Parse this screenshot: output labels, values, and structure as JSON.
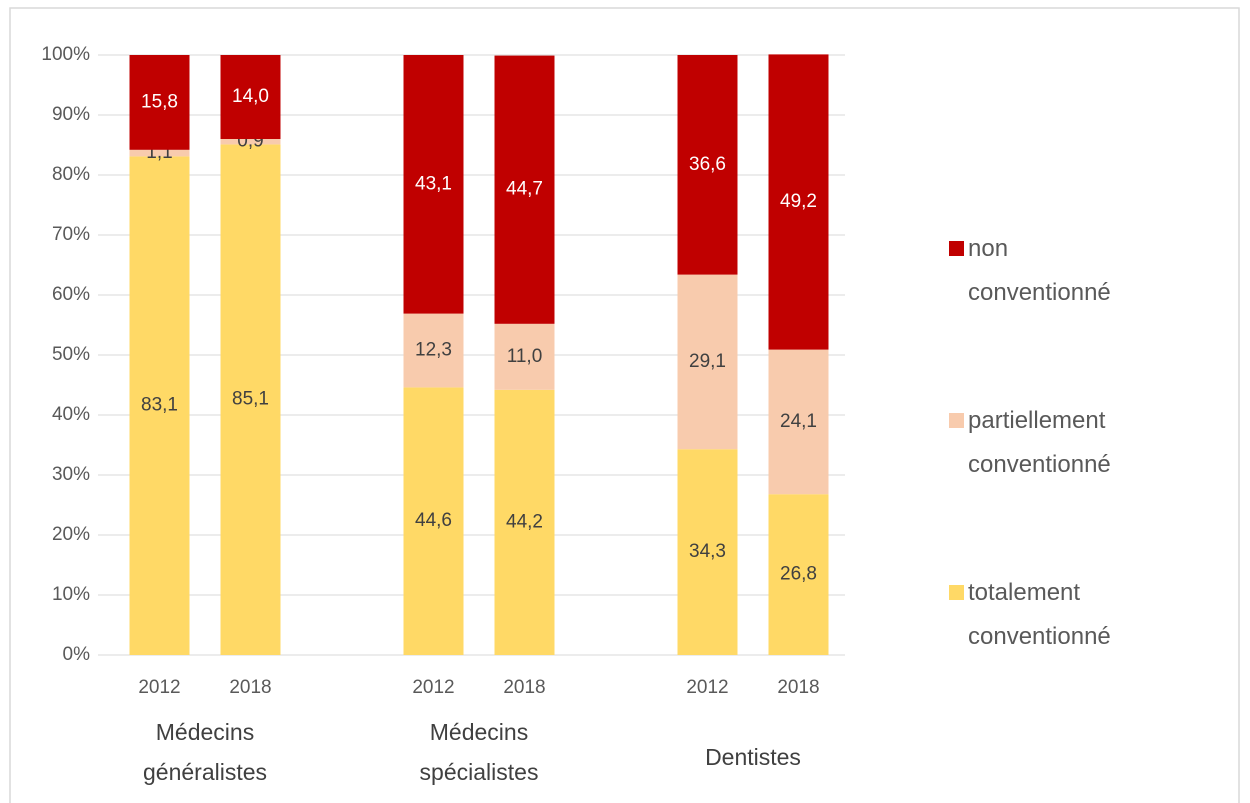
{
  "chart_data": {
    "type": "stacked_bar",
    "categories": [
      "2012",
      "2018",
      "2012",
      "2018",
      "2012",
      "2018"
    ],
    "groups": [
      "Médecins généralistes",
      "Médecins spécialistes",
      "Dentistes"
    ],
    "series": [
      {
        "name": "totalement conventionné",
        "color": "#FFD966",
        "values": [
          83.1,
          85.1,
          44.6,
          44.2,
          34.3,
          26.8
        ],
        "value_labels": [
          "83,1",
          "85,1",
          "44,6",
          "44,2",
          "34,3",
          "26,8"
        ]
      },
      {
        "name": "partiellement conventionné",
        "color": "#F8CBAD",
        "values": [
          1.1,
          0.9,
          12.3,
          11.0,
          29.1,
          24.1
        ],
        "value_labels": [
          "1,1",
          "0,9",
          "12,3",
          "11,0",
          "29,1",
          "24,1"
        ]
      },
      {
        "name": "non conventionné",
        "color": "#C00000",
        "values": [
          15.8,
          14.0,
          43.1,
          44.7,
          36.6,
          49.2
        ],
        "value_labels": [
          "15,8",
          "14,0",
          "43,1",
          "44,7",
          "36,6",
          "49,2"
        ]
      }
    ],
    "ylim": [
      0,
      100
    ],
    "yticks": [
      {
        "value": 0,
        "label": "0%"
      },
      {
        "value": 10,
        "label": "10%"
      },
      {
        "value": 20,
        "label": "20%"
      },
      {
        "value": 30,
        "label": "30%"
      },
      {
        "value": 40,
        "label": "40%"
      },
      {
        "value": 50,
        "label": "50%"
      },
      {
        "value": 60,
        "label": "60%"
      },
      {
        "value": 70,
        "label": "70%"
      },
      {
        "value": 80,
        "label": "80%"
      },
      {
        "value": 90,
        "label": "90%"
      },
      {
        "value": 100,
        "label": "100%"
      }
    ],
    "grid": true
  }
}
